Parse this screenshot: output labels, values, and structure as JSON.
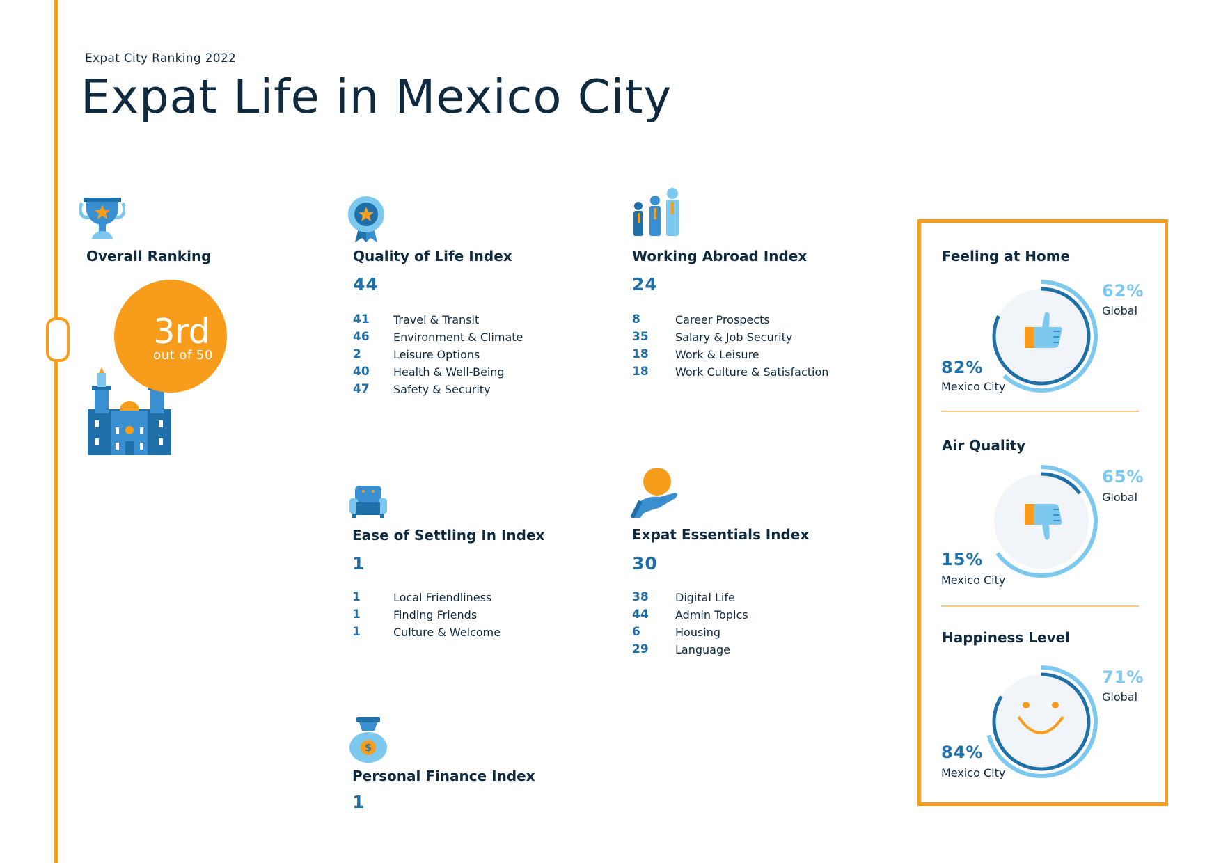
{
  "header": {
    "subtitle": "Expat City Ranking 2022",
    "title": "Expat Life in Mexico City"
  },
  "overall": {
    "title": "Overall Ranking",
    "rank": "3rd",
    "out_of": "out of 50"
  },
  "quality": {
    "title": "Quality of Life Index",
    "value": "44",
    "rows": [
      {
        "num": "41",
        "label": "Travel & Transit"
      },
      {
        "num": "46",
        "label": "Environment & Climate"
      },
      {
        "num": "2",
        "label": "Leisure Options"
      },
      {
        "num": "40",
        "label": "Health & Well-Being"
      },
      {
        "num": "47",
        "label": "Safety & Security"
      }
    ]
  },
  "working": {
    "title": "Working Abroad Index",
    "value": "24",
    "rows": [
      {
        "num": "8",
        "label": "Career Prospects"
      },
      {
        "num": "35",
        "label": "Salary & Job Security"
      },
      {
        "num": "18",
        "label": "Work & Leisure"
      },
      {
        "num": "18",
        "label": "Work Culture & Satisfaction"
      }
    ]
  },
  "settling": {
    "title": "Ease of Settling In Index",
    "value": "1",
    "rows": [
      {
        "num": "1",
        "label": "Local Friendliness"
      },
      {
        "num": "1",
        "label": "Finding Friends"
      },
      {
        "num": "1",
        "label": "Culture & Welcome"
      }
    ]
  },
  "essentials": {
    "title": "Expat Essentials Index",
    "value": "30",
    "rows": [
      {
        "num": "38",
        "label": "Digital Life"
      },
      {
        "num": "44",
        "label": "Admin Topics"
      },
      {
        "num": "6",
        "label": "Housing"
      },
      {
        "num": "29",
        "label": "Language"
      }
    ]
  },
  "finance": {
    "title": "Personal Finance Index",
    "value": "1"
  },
  "panel": {
    "items": [
      {
        "title": "Feeling at Home",
        "global_pct": "62%",
        "global_label": "Global",
        "city_pct": "82%",
        "city_label": "Mexico City",
        "global_value": 0.62,
        "city_value": 0.82,
        "icon": "thumbs-up-icon"
      },
      {
        "title": "Air Quality",
        "global_pct": "65%",
        "global_label": "Global",
        "city_pct": "15%",
        "city_label": "Mexico City",
        "global_value": 0.65,
        "city_value": 0.15,
        "icon": "thumbs-down-icon"
      },
      {
        "title": "Happiness Level",
        "global_pct": "71%",
        "global_label": "Global",
        "city_pct": "84%",
        "city_label": "Mexico City",
        "global_value": 0.71,
        "city_value": 0.84,
        "icon": "smiley-icon"
      }
    ]
  },
  "colors": {
    "accent": "#f89c1c",
    "navy": "#0f2a3f",
    "blue": "#1f6fa8",
    "light_blue": "#7cc8ee",
    "mid_blue": "#3a8fd0",
    "circle_bg": "#f1f5f9"
  }
}
